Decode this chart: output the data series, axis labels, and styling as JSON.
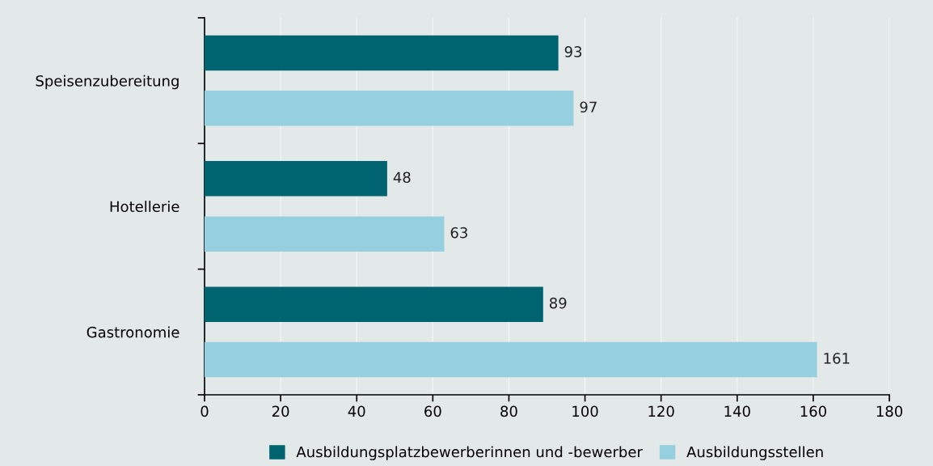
{
  "chart_data": {
    "type": "bar",
    "orientation": "horizontal",
    "categories": [
      "Speisenzubereitung",
      "Hotellerie",
      "Gastronomie"
    ],
    "series": [
      {
        "name": "Ausbildungsplatzbewerberinnen und -bewerber",
        "color": "#006470",
        "values": [
          93,
          48,
          89
        ]
      },
      {
        "name": "Ausbildungsstellen",
        "color": "#96cfe0",
        "values": [
          97,
          63,
          161
        ]
      }
    ],
    "xlim": [
      0,
      180
    ],
    "xticks": [
      0,
      20,
      40,
      60,
      80,
      100,
      120,
      140,
      160,
      180
    ],
    "grid": "x",
    "legend": "bottom",
    "data_labels": true
  }
}
